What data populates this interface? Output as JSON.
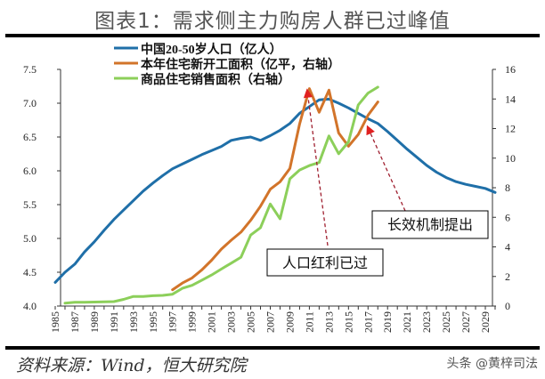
{
  "title": "图表1：需求侧主力购房人群已过峰值",
  "source": "资料来源：Wind，恒大研究院",
  "watermark": "头条 @黄梓司法",
  "chart_data": {
    "type": "line",
    "title": "图表1：需求侧主力购房人群已过峰值",
    "x": [
      1985,
      1986,
      1987,
      1988,
      1989,
      1990,
      1991,
      1992,
      1993,
      1994,
      1995,
      1996,
      1997,
      1998,
      1999,
      2000,
      2001,
      2002,
      2003,
      2004,
      2005,
      2006,
      2007,
      2008,
      2009,
      2010,
      2011,
      2012,
      2013,
      2014,
      2015,
      2016,
      2017,
      2018,
      2019,
      2020,
      2021,
      2022,
      2023,
      2024,
      2025,
      2026,
      2027,
      2028,
      2029,
      2030
    ],
    "x_tick_labels": [
      "1985",
      "1987",
      "1989",
      "1991",
      "1993",
      "1995",
      "1997",
      "1999",
      "2001",
      "2003",
      "2005",
      "2007",
      "2009",
      "2011",
      "2013",
      "2015",
      "2017",
      "2019",
      "2021",
      "2023",
      "2025",
      "2027",
      "2029"
    ],
    "left_axis": {
      "ylim": [
        4.0,
        7.5
      ],
      "ticks": [
        "4.0",
        "4.5",
        "5.0",
        "5.5",
        "6.0",
        "6.5",
        "7.0",
        "7.5"
      ]
    },
    "right_axis": {
      "ylim": [
        0,
        16
      ],
      "ticks": [
        "0",
        "2",
        "4",
        "6",
        "8",
        "10",
        "12",
        "14",
        "16"
      ]
    },
    "legend_position": "top-left",
    "series": [
      {
        "name": "中国20-50岁人口（亿人）",
        "axis": "left",
        "color": "#1f6fa8",
        "values": [
          4.35,
          4.5,
          4.62,
          4.8,
          4.95,
          5.12,
          5.28,
          5.42,
          5.56,
          5.7,
          5.82,
          5.93,
          6.03,
          6.1,
          6.17,
          6.24,
          6.3,
          6.36,
          6.45,
          6.48,
          6.5,
          6.45,
          6.52,
          6.6,
          6.7,
          6.85,
          6.95,
          7.05,
          7.06,
          7.0,
          6.93,
          6.85,
          6.77,
          6.7,
          6.58,
          6.45,
          6.32,
          6.2,
          6.08,
          5.98,
          5.9,
          5.84,
          5.8,
          5.77,
          5.74,
          5.68
        ]
      },
      {
        "name": "本年住宅新开工面积（亿平，右轴）",
        "axis": "right",
        "color": "#d2742a",
        "values": [
          null,
          null,
          null,
          null,
          null,
          null,
          null,
          null,
          null,
          null,
          null,
          null,
          1.1,
          1.55,
          1.9,
          2.45,
          3.1,
          3.85,
          4.45,
          5.0,
          5.8,
          6.75,
          7.9,
          8.4,
          9.3,
          12.3,
          14.7,
          13.1,
          14.6,
          11.7,
          10.8,
          11.6,
          12.9,
          13.8,
          null,
          null,
          null,
          null,
          null,
          null,
          null,
          null,
          null,
          null,
          null,
          null
        ]
      },
      {
        "name": "商品住宅销售面积（右轴）",
        "axis": "right",
        "color": "#8ccf5a",
        "values": [
          null,
          0.2,
          0.25,
          0.25,
          0.27,
          0.28,
          0.3,
          0.45,
          0.65,
          0.65,
          0.7,
          0.72,
          0.8,
          1.2,
          1.4,
          1.75,
          2.1,
          2.5,
          2.9,
          3.3,
          4.8,
          5.3,
          6.9,
          5.9,
          8.6,
          9.2,
          9.5,
          9.7,
          11.5,
          10.3,
          11.1,
          13.6,
          14.4,
          14.8,
          null,
          null,
          null,
          null,
          null,
          null,
          null,
          null,
          null,
          null,
          null,
          null
        ]
      }
    ],
    "annotations": [
      {
        "text": "人口红利已过",
        "points_to_year": 2011
      },
      {
        "text": "长效机制提出",
        "points_to_year": 2017
      }
    ]
  }
}
